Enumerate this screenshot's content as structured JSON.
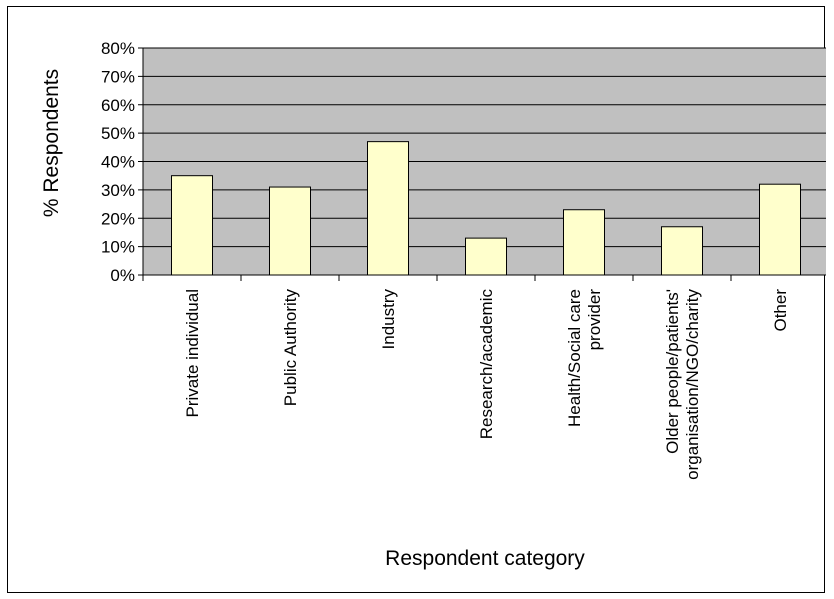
{
  "chart_data": {
    "type": "bar",
    "categories": [
      [
        "Private individual"
      ],
      [
        "Public Authority"
      ],
      [
        "Industry"
      ],
      [
        "Research/academic"
      ],
      [
        "Health/Social care",
        "provider"
      ],
      [
        "Older people/patients'",
        "organisation/NGO/charity"
      ],
      [
        "Other"
      ]
    ],
    "values": [
      35,
      31,
      47,
      13,
      23,
      17,
      32
    ],
    "xlabel": "Respondent category",
    "ylabel": "% Respondents",
    "ylim": [
      0,
      80
    ],
    "yticks": [
      "0%",
      "10%",
      "20%",
      "30%",
      "40%",
      "50%",
      "60%",
      "70%",
      "80%"
    ],
    "grid": true,
    "legend": "none",
    "colors": {
      "plot_background": "#c0c0c0",
      "bar_fill": "#ffffcc",
      "bar_stroke": "#000000",
      "grid": "#000000"
    }
  }
}
